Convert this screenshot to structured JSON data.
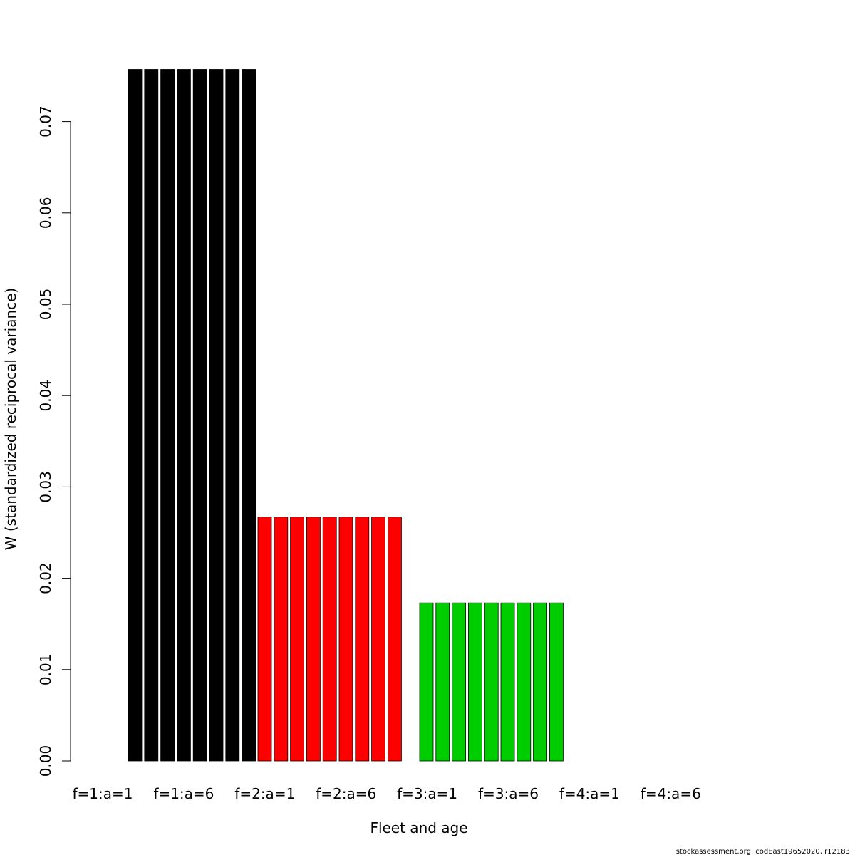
{
  "chart_data": {
    "type": "bar",
    "xlabel": "Fleet and age",
    "ylabel": "W (standardized reciprocal variance)",
    "ylim": [
      0,
      0.07
    ],
    "yticks": [
      "0.00",
      "0.01",
      "0.02",
      "0.03",
      "0.04",
      "0.05",
      "0.06",
      "0.07"
    ],
    "x_tick_labels": [
      "f=1:a=1",
      "f=1:a=6",
      "f=2:a=1",
      "f=2:a=6",
      "f=3:a=1",
      "f=3:a=6",
      "f=4:a=1",
      "f=4:a=6"
    ],
    "series": [
      {
        "fleet": 1,
        "color": "#000000",
        "bars": [
          {
            "age": 1,
            "value": 0.0757
          },
          {
            "age": 2,
            "value": 0.0757
          },
          {
            "age": 3,
            "value": 0.0757
          },
          {
            "age": 4,
            "value": 0.0757
          },
          {
            "age": 5,
            "value": 0.0757
          },
          {
            "age": 6,
            "value": 0.0757
          },
          {
            "age": 7,
            "value": 0.0757
          },
          {
            "age": 8,
            "value": 0.0757
          }
        ]
      },
      {
        "fleet": 2,
        "color": "#ff0000",
        "bars": [
          {
            "age": 1,
            "value": 0.0267
          },
          {
            "age": 2,
            "value": 0.0267
          },
          {
            "age": 3,
            "value": 0.0267
          },
          {
            "age": 4,
            "value": 0.0267
          },
          {
            "age": 5,
            "value": 0.0267
          },
          {
            "age": 6,
            "value": 0.0267
          },
          {
            "age": 7,
            "value": 0.0267
          },
          {
            "age": 8,
            "value": 0.0267
          },
          {
            "age": 9,
            "value": 0.0267
          }
        ]
      },
      {
        "fleet": 3,
        "color": "#00cd00",
        "bars": [
          {
            "age": 1,
            "value": 0.0173
          },
          {
            "age": 2,
            "value": 0.0173
          },
          {
            "age": 3,
            "value": 0.0173
          },
          {
            "age": 4,
            "value": 0.0173
          },
          {
            "age": 5,
            "value": 0.0173
          },
          {
            "age": 6,
            "value": 0.0173
          },
          {
            "age": 7,
            "value": 0.0173
          },
          {
            "age": 8,
            "value": 0.0173
          },
          {
            "age": 9,
            "value": 0.0173
          }
        ]
      }
    ],
    "grid": false,
    "legend": "none"
  },
  "footer": {
    "credit": "stockassessment.org, codEast19652020, r12183"
  }
}
